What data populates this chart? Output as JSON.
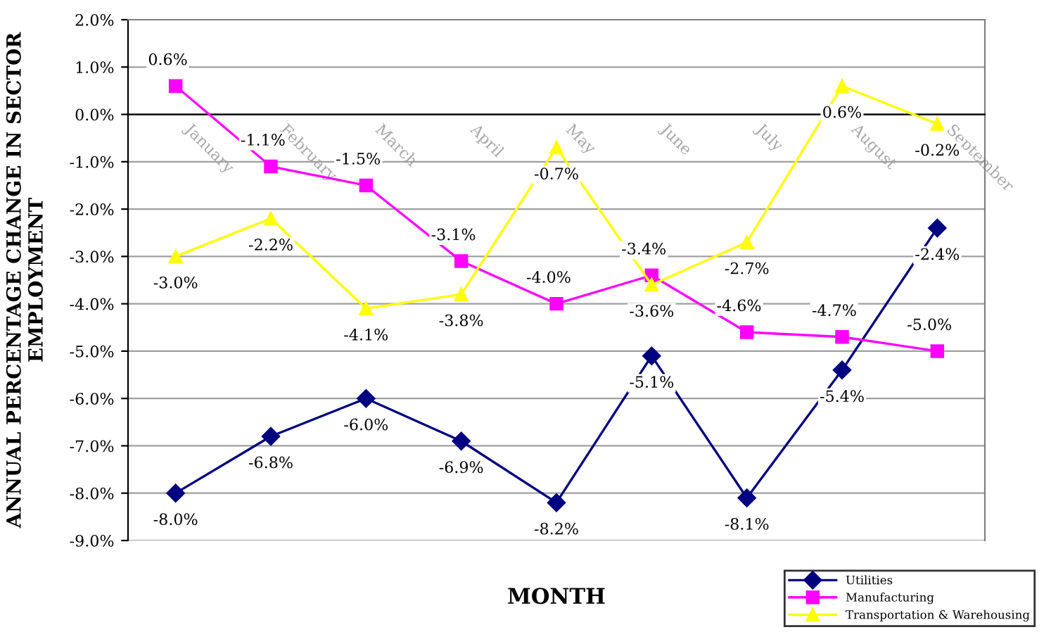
{
  "chart_data": {
    "type": "line",
    "xlabel": "MONTH",
    "ylabel": "ANNUAL PERCENTAGE CHANGE IN SECTOR EMPLOYMENT",
    "categories": [
      "January",
      "February",
      "March",
      "April",
      "May",
      "June",
      "July",
      "August",
      "September"
    ],
    "ylim": [
      -9.0,
      2.0
    ],
    "yticks": [
      {
        "value": -9,
        "label": "-9.0%"
      },
      {
        "value": -8,
        "label": "-8.0%"
      },
      {
        "value": -7,
        "label": "-7.0%"
      },
      {
        "value": -6,
        "label": "-6.0%"
      },
      {
        "value": -5,
        "label": "-5.0%"
      },
      {
        "value": -4,
        "label": "-4.0%"
      },
      {
        "value": -3,
        "label": "-3.0%"
      },
      {
        "value": -2,
        "label": "-2.0%"
      },
      {
        "value": -1,
        "label": "-1.0%"
      },
      {
        "value": 0,
        "label": "0.0%"
      },
      {
        "value": 1,
        "label": "1.0%"
      },
      {
        "value": 2,
        "label": "2.0%"
      }
    ],
    "grid": "y",
    "legend": "bottom right",
    "line_style": "solid",
    "series": [
      {
        "name": "Utilities",
        "color": "#000080",
        "marker": "diamond",
        "values": [
          -8.0,
          -6.8,
          -6.0,
          -6.9,
          -8.2,
          -5.1,
          -8.1,
          -5.4,
          -2.4
        ],
        "value_labels": [
          "-8.0%",
          "-6.8%",
          "-6.0%",
          "-6.9%",
          "-8.2%",
          "-5.1%",
          "-8.1%",
          "-5.4%",
          "-2.4%"
        ]
      },
      {
        "name": "Manufacturing",
        "color": "#ff00ff",
        "marker": "square",
        "values": [
          0.6,
          -1.1,
          -1.5,
          -3.1,
          -4.0,
          -3.4,
          -4.6,
          -4.7,
          -5.0
        ],
        "value_labels": [
          "0.6%",
          "-1.1%",
          "-1.5%",
          "-3.1%",
          "-4.0%",
          "-3.4%",
          "-4.6%",
          "-4.7%",
          "-5.0%"
        ]
      },
      {
        "name": "Transportation & Warehousing",
        "color": "#ffff00",
        "marker": "triangle",
        "values": [
          -3.0,
          -2.2,
          -4.1,
          -3.8,
          -0.7,
          -3.6,
          -2.7,
          0.6,
          -0.2
        ],
        "value_labels": [
          "-3.0%",
          "-2.2%",
          "-4.1%",
          "-3.8%",
          "-0.7%",
          "-3.6%",
          "-2.7%",
          "0.6%",
          "-0.2%"
        ]
      }
    ]
  }
}
